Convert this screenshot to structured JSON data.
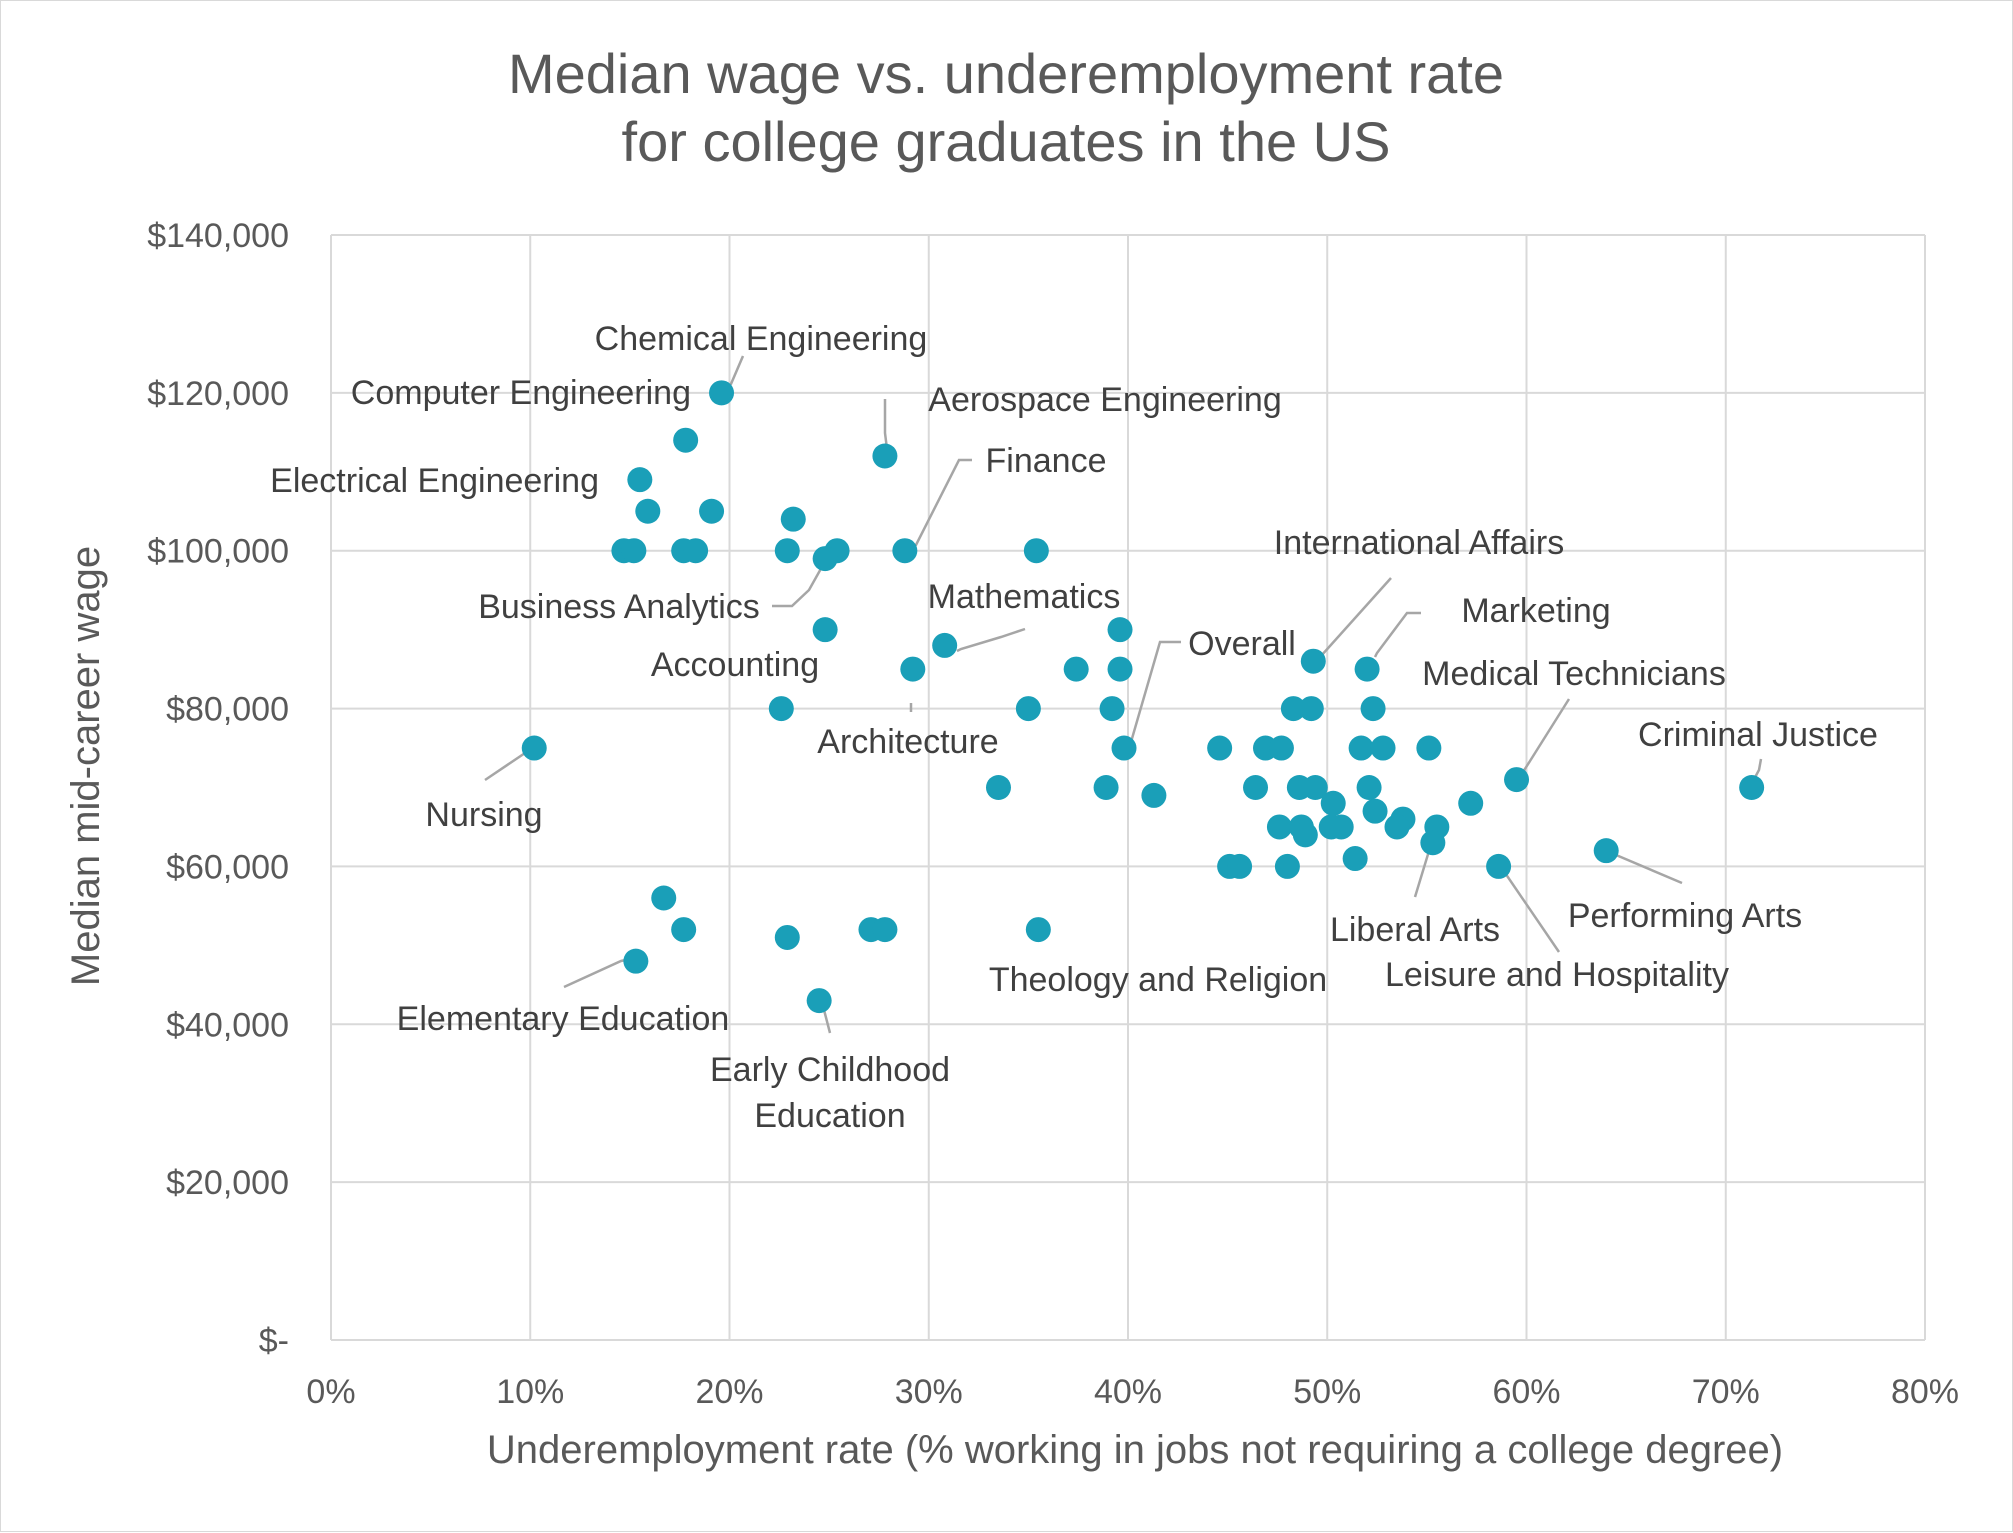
{
  "colors": {
    "marker": "#1a9fb8",
    "gridline": "#d9d9d9",
    "axis_text": "#595959",
    "label_text": "#404040",
    "leader_line": "#a6a6a6"
  },
  "chart_data": {
    "type": "scatter",
    "title_lines": [
      "Median wage vs. underemployment rate",
      "for college graduates in the US"
    ],
    "xlabel": "Underemployment rate (% working in jobs not requiring a college degree)",
    "ylabel": "Median mid-career wage",
    "xlim": [
      0,
      80
    ],
    "ylim": [
      0,
      140000
    ],
    "x_ticks": [
      0,
      10,
      20,
      30,
      40,
      50,
      60,
      70,
      80
    ],
    "x_tick_labels": [
      "0%",
      "10%",
      "20%",
      "30%",
      "40%",
      "50%",
      "60%",
      "70%",
      "80%"
    ],
    "y_ticks": [
      0,
      20000,
      40000,
      60000,
      80000,
      100000,
      120000,
      140000
    ],
    "y_tick_labels": [
      "$-",
      "$20,000",
      "$40,000",
      "$60,000",
      "$80,000",
      "$100,000",
      "$120,000",
      "$140,000"
    ],
    "grid": true,
    "legend": "none",
    "points": [
      {
        "x": 19.6,
        "y": 120000
      },
      {
        "x": 17.8,
        "y": 114000
      },
      {
        "x": 27.8,
        "y": 112000
      },
      {
        "x": 15.5,
        "y": 109000
      },
      {
        "x": 15.9,
        "y": 105000
      },
      {
        "x": 19.1,
        "y": 105000
      },
      {
        "x": 23.2,
        "y": 104000
      },
      {
        "x": 14.7,
        "y": 100000
      },
      {
        "x": 15.2,
        "y": 100000
      },
      {
        "x": 17.7,
        "y": 100000
      },
      {
        "x": 18.3,
        "y": 100000
      },
      {
        "x": 22.9,
        "y": 100000
      },
      {
        "x": 25.4,
        "y": 100000
      },
      {
        "x": 28.8,
        "y": 100000
      },
      {
        "x": 35.4,
        "y": 100000
      },
      {
        "x": 24.8,
        "y": 99000
      },
      {
        "x": 24.8,
        "y": 90000
      },
      {
        "x": 39.6,
        "y": 90000
      },
      {
        "x": 30.8,
        "y": 88000
      },
      {
        "x": 49.3,
        "y": 86000
      },
      {
        "x": 29.2,
        "y": 85000
      },
      {
        "x": 37.4,
        "y": 85000
      },
      {
        "x": 39.6,
        "y": 85000
      },
      {
        "x": 52.0,
        "y": 85000
      },
      {
        "x": 22.6,
        "y": 80000
      },
      {
        "x": 35.0,
        "y": 80000
      },
      {
        "x": 39.2,
        "y": 80000
      },
      {
        "x": 48.3,
        "y": 80000
      },
      {
        "x": 49.2,
        "y": 80000
      },
      {
        "x": 52.3,
        "y": 80000
      },
      {
        "x": 10.2,
        "y": 75000
      },
      {
        "x": 39.8,
        "y": 75000
      },
      {
        "x": 44.6,
        "y": 75000
      },
      {
        "x": 46.9,
        "y": 75000
      },
      {
        "x": 47.7,
        "y": 75000
      },
      {
        "x": 51.7,
        "y": 75000
      },
      {
        "x": 52.8,
        "y": 75000
      },
      {
        "x": 55.1,
        "y": 75000
      },
      {
        "x": 59.5,
        "y": 71000
      },
      {
        "x": 33.5,
        "y": 70000
      },
      {
        "x": 38.9,
        "y": 70000
      },
      {
        "x": 46.4,
        "y": 70000
      },
      {
        "x": 48.6,
        "y": 70000
      },
      {
        "x": 49.4,
        "y": 70000
      },
      {
        "x": 52.1,
        "y": 70000
      },
      {
        "x": 71.3,
        "y": 70000
      },
      {
        "x": 41.3,
        "y": 69000
      },
      {
        "x": 50.3,
        "y": 68000
      },
      {
        "x": 57.2,
        "y": 68000
      },
      {
        "x": 52.4,
        "y": 67000
      },
      {
        "x": 53.8,
        "y": 66000
      },
      {
        "x": 47.6,
        "y": 65000
      },
      {
        "x": 48.7,
        "y": 65000
      },
      {
        "x": 50.2,
        "y": 65000
      },
      {
        "x": 50.7,
        "y": 65000
      },
      {
        "x": 53.5,
        "y": 65000
      },
      {
        "x": 55.5,
        "y": 65000
      },
      {
        "x": 48.9,
        "y": 64000
      },
      {
        "x": 55.3,
        "y": 63000
      },
      {
        "x": 64.0,
        "y": 62000
      },
      {
        "x": 51.4,
        "y": 61000
      },
      {
        "x": 45.1,
        "y": 60000
      },
      {
        "x": 45.6,
        "y": 60000
      },
      {
        "x": 48.0,
        "y": 60000
      },
      {
        "x": 58.6,
        "y": 60000
      },
      {
        "x": 16.7,
        "y": 56000
      },
      {
        "x": 17.7,
        "y": 52000
      },
      {
        "x": 27.1,
        "y": 52000
      },
      {
        "x": 27.8,
        "y": 52000
      },
      {
        "x": 35.5,
        "y": 52000
      },
      {
        "x": 22.9,
        "y": 51000
      },
      {
        "x": 15.3,
        "y": 48000
      },
      {
        "x": 24.5,
        "y": 43000
      }
    ],
    "annotations": [
      {
        "text": "Chemical Engineering",
        "x": 19.6,
        "y": 120000
      },
      {
        "text": "Computer Engineering",
        "x": 17.8,
        "y": 114000
      },
      {
        "text": "Aerospace Engineering",
        "x": 27.8,
        "y": 112000
      },
      {
        "text": "Electrical Engineering",
        "x": 15.5,
        "y": 109000
      },
      {
        "text": "Finance",
        "x": 28.8,
        "y": 100000
      },
      {
        "text": "Business Analytics",
        "x": 24.8,
        "y": 99000
      },
      {
        "text": "Accounting",
        "x": 24.8,
        "y": 90000
      },
      {
        "text": "Mathematics",
        "x": 30.8,
        "y": 88000
      },
      {
        "text": "International Affairs",
        "x": 49.3,
        "y": 86000
      },
      {
        "text": "Marketing",
        "x": 52.0,
        "y": 85000
      },
      {
        "text": "Overall",
        "x": 39.8,
        "y": 75000
      },
      {
        "text": "Architecture",
        "x": 29.2,
        "y": 85000
      },
      {
        "text": "Medical Technicians",
        "x": 59.5,
        "y": 71000
      },
      {
        "text": "Criminal Justice",
        "x": 71.3,
        "y": 70000
      },
      {
        "text": "Nursing",
        "x": 10.2,
        "y": 75000
      },
      {
        "text": "Liberal Arts",
        "x": 55.3,
        "y": 63000
      },
      {
        "text": "Performing Arts",
        "x": 64.0,
        "y": 62000
      },
      {
        "text": "Leisure and Hospitality",
        "x": 58.6,
        "y": 60000
      },
      {
        "text": "Theology and Religion",
        "x": 35.5,
        "y": 52000
      },
      {
        "text": "Elementary Education",
        "x": 15.3,
        "y": 48000
      },
      {
        "text": "Early Childhood",
        "x": 24.5,
        "y": 43000
      },
      {
        "text": "Education",
        "x": 24.5,
        "y": 43000
      }
    ]
  }
}
